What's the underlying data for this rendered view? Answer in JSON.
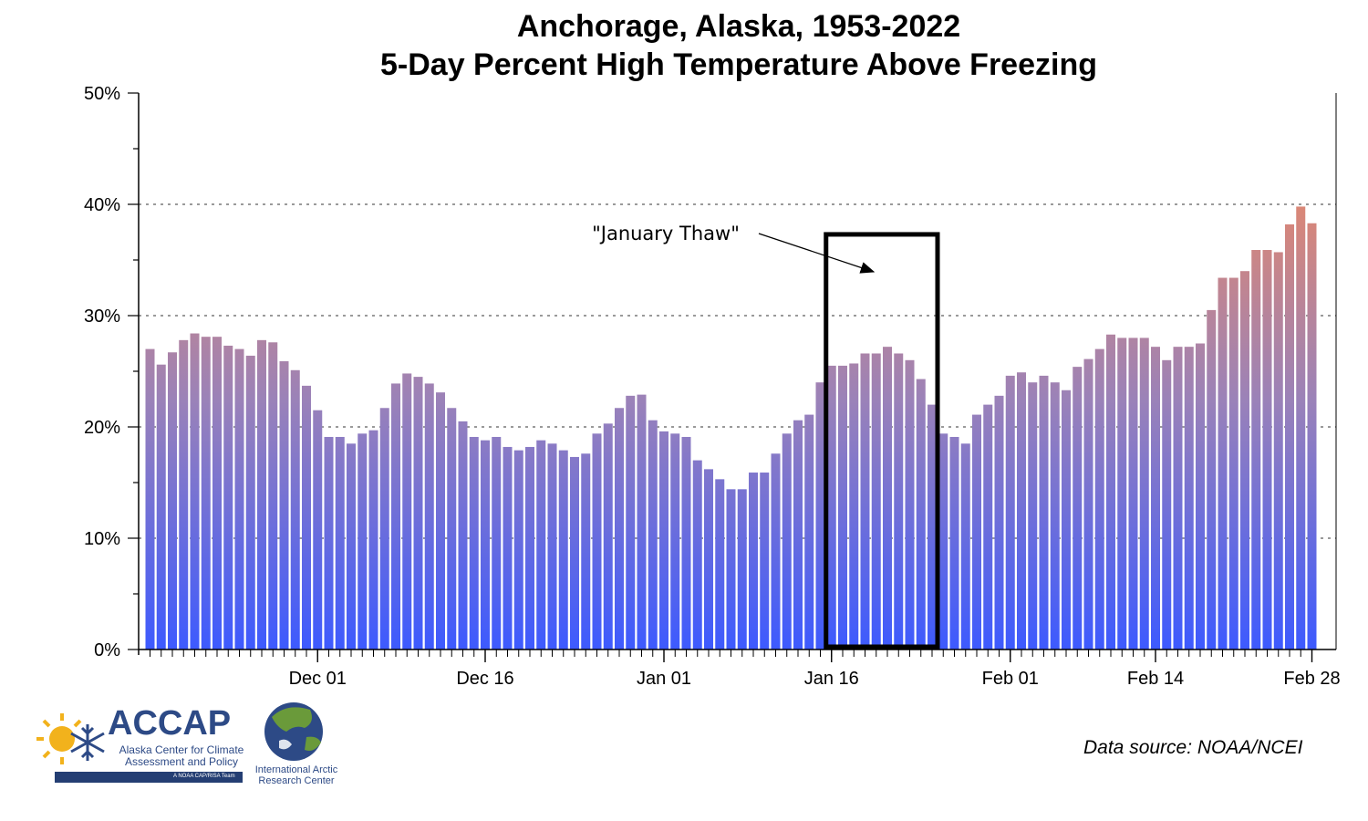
{
  "chart_data": {
    "type": "bar",
    "title": "Anchorage, Alaska, 1953-2022",
    "subtitle": "5-Day Percent High Temperature Above Freezing",
    "xlabel": "",
    "ylabel": "",
    "ylim": [
      0,
      50
    ],
    "y_ticks": [
      "0%",
      "10%",
      "20%",
      "30%",
      "40%",
      "50%"
    ],
    "grid": "horizontal dotted at 10%, 20%, 30%, 40%",
    "x_tick_labels": [
      {
        "label": "Dec 01",
        "index": 15
      },
      {
        "label": "Dec 16",
        "index": 30
      },
      {
        "label": "Jan 01",
        "index": 46
      },
      {
        "label": "Jan 16",
        "index": 61
      },
      {
        "label": "Feb 01",
        "index": 77
      },
      {
        "label": "Feb 14",
        "index": 90
      },
      {
        "label": "Feb 28",
        "index": 104
      }
    ],
    "values": [
      27.0,
      25.6,
      26.7,
      27.8,
      28.4,
      28.1,
      28.1,
      27.3,
      27.0,
      26.4,
      27.8,
      27.6,
      25.9,
      25.1,
      23.7,
      21.5,
      19.1,
      19.1,
      18.5,
      19.4,
      19.7,
      21.7,
      23.9,
      24.8,
      24.5,
      23.9,
      23.1,
      21.7,
      20.5,
      19.1,
      18.8,
      19.1,
      18.2,
      17.9,
      18.2,
      18.8,
      18.5,
      17.9,
      17.3,
      17.6,
      19.4,
      20.3,
      21.7,
      22.8,
      22.9,
      20.6,
      19.6,
      19.4,
      19.1,
      17.0,
      16.2,
      15.3,
      14.4,
      14.4,
      15.9,
      15.9,
      17.6,
      19.4,
      20.6,
      21.1,
      24.0,
      25.5,
      25.5,
      25.7,
      26.6,
      26.6,
      27.2,
      26.6,
      26.0,
      24.3,
      22.0,
      19.4,
      19.1,
      18.5,
      21.1,
      22.0,
      22.8,
      24.6,
      24.9,
      24.0,
      24.6,
      24.0,
      23.3,
      25.4,
      26.1,
      27.0,
      28.3,
      28.0,
      28.0,
      28.0,
      27.2,
      26.0,
      27.2,
      27.2,
      27.5,
      30.5,
      33.4,
      33.4,
      34.0,
      35.9,
      35.9,
      35.7,
      38.2,
      39.8,
      38.3
    ],
    "colors": {
      "low": "#3d5afe",
      "high": "#ff8a50"
    },
    "annotation": {
      "text": "\"January Thaw\"",
      "box_start_index": 61,
      "box_end_index": 70,
      "box_top_value": 37.3
    }
  },
  "source_note": "Data source: NOAA/NCEI",
  "logos": {
    "accap": {
      "name": "ACCAP",
      "subtitle": "Alaska Center for Climate Assessment and Policy",
      "team": "A NOAA CAP/RISA Team",
      "color": "#2d4a86"
    },
    "iarc": {
      "name": "International Arctic Research Center"
    }
  }
}
